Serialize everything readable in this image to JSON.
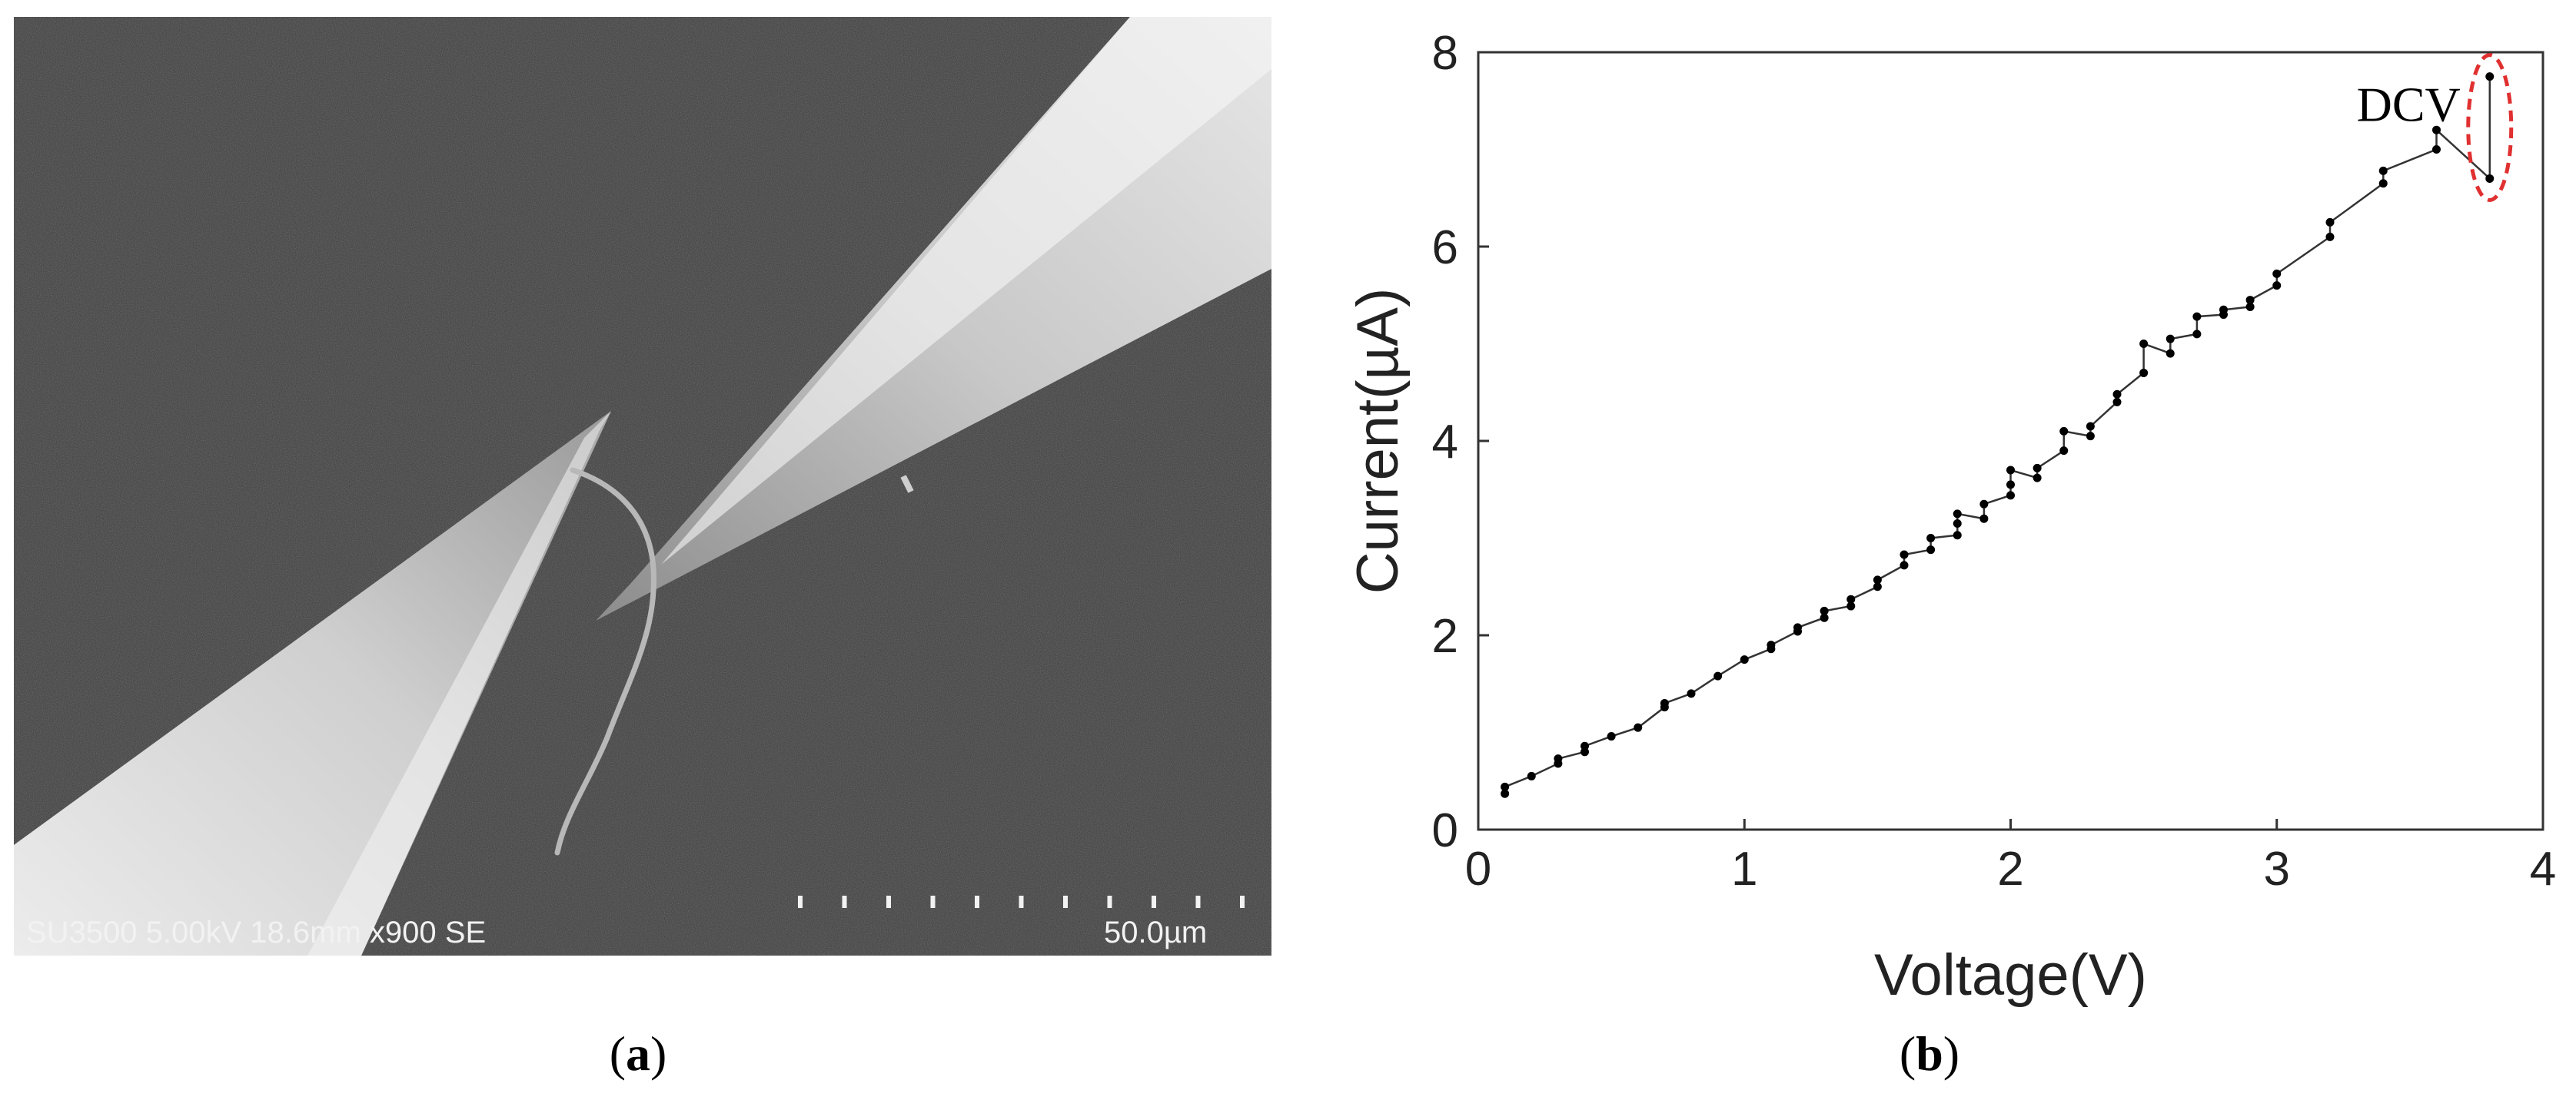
{
  "panels": {
    "a": {
      "label_open": "(",
      "label_letter": "a",
      "label_close": ")",
      "sem_info": "SU3500 5.00kV 18.6mm x900 SE",
      "scale_bar": "50.0µm"
    },
    "b": {
      "label_open": "(",
      "label_letter": "b",
      "label_close": ")"
    }
  },
  "chart_data": {
    "type": "line",
    "title": "",
    "xlabel": "Voltage(V)",
    "ylabel": "Current(µA)",
    "xlim": [
      0,
      4
    ],
    "ylim": [
      0,
      8
    ],
    "x_ticks": [
      0,
      1,
      2,
      3,
      4
    ],
    "y_ticks": [
      0,
      2,
      4,
      6,
      8
    ],
    "grid": false,
    "annotation": "DCV",
    "annotation_highlight_color": "#e03030",
    "series": [
      {
        "color": "#333333",
        "points": [
          [
            0.1,
            0.37
          ],
          [
            0.1,
            0.44
          ],
          [
            0.2,
            0.55
          ],
          [
            0.3,
            0.68
          ],
          [
            0.3,
            0.73
          ],
          [
            0.4,
            0.8
          ],
          [
            0.4,
            0.86
          ],
          [
            0.5,
            0.96
          ],
          [
            0.6,
            1.05
          ],
          [
            0.7,
            1.26
          ],
          [
            0.7,
            1.3
          ],
          [
            0.8,
            1.4
          ],
          [
            0.9,
            1.58
          ],
          [
            1.0,
            1.75
          ],
          [
            1.1,
            1.86
          ],
          [
            1.1,
            1.9
          ],
          [
            1.2,
            2.04
          ],
          [
            1.2,
            2.08
          ],
          [
            1.3,
            2.18
          ],
          [
            1.3,
            2.25
          ],
          [
            1.4,
            2.3
          ],
          [
            1.4,
            2.37
          ],
          [
            1.5,
            2.5
          ],
          [
            1.5,
            2.57
          ],
          [
            1.6,
            2.72
          ],
          [
            1.6,
            2.83
          ],
          [
            1.7,
            2.88
          ],
          [
            1.7,
            3.0
          ],
          [
            1.8,
            3.03
          ],
          [
            1.8,
            3.15
          ],
          [
            1.8,
            3.25
          ],
          [
            1.9,
            3.2
          ],
          [
            1.9,
            3.35
          ],
          [
            2.0,
            3.44
          ],
          [
            2.0,
            3.55
          ],
          [
            2.0,
            3.7
          ],
          [
            2.1,
            3.62
          ],
          [
            2.1,
            3.72
          ],
          [
            2.2,
            3.9
          ],
          [
            2.2,
            4.1
          ],
          [
            2.3,
            4.05
          ],
          [
            2.3,
            4.15
          ],
          [
            2.4,
            4.4
          ],
          [
            2.4,
            4.48
          ],
          [
            2.5,
            4.7
          ],
          [
            2.5,
            5.0
          ],
          [
            2.6,
            4.9
          ],
          [
            2.6,
            5.05
          ],
          [
            2.7,
            5.1
          ],
          [
            2.7,
            5.28
          ],
          [
            2.8,
            5.3
          ],
          [
            2.8,
            5.35
          ],
          [
            2.9,
            5.38
          ],
          [
            2.9,
            5.45
          ],
          [
            3.0,
            5.6
          ],
          [
            3.0,
            5.72
          ],
          [
            3.2,
            6.1
          ],
          [
            3.2,
            6.25
          ],
          [
            3.4,
            6.65
          ],
          [
            3.4,
            6.78
          ],
          [
            3.6,
            7.0
          ],
          [
            3.6,
            7.2
          ],
          [
            3.8,
            6.7
          ],
          [
            3.8,
            7.75
          ]
        ]
      }
    ]
  }
}
